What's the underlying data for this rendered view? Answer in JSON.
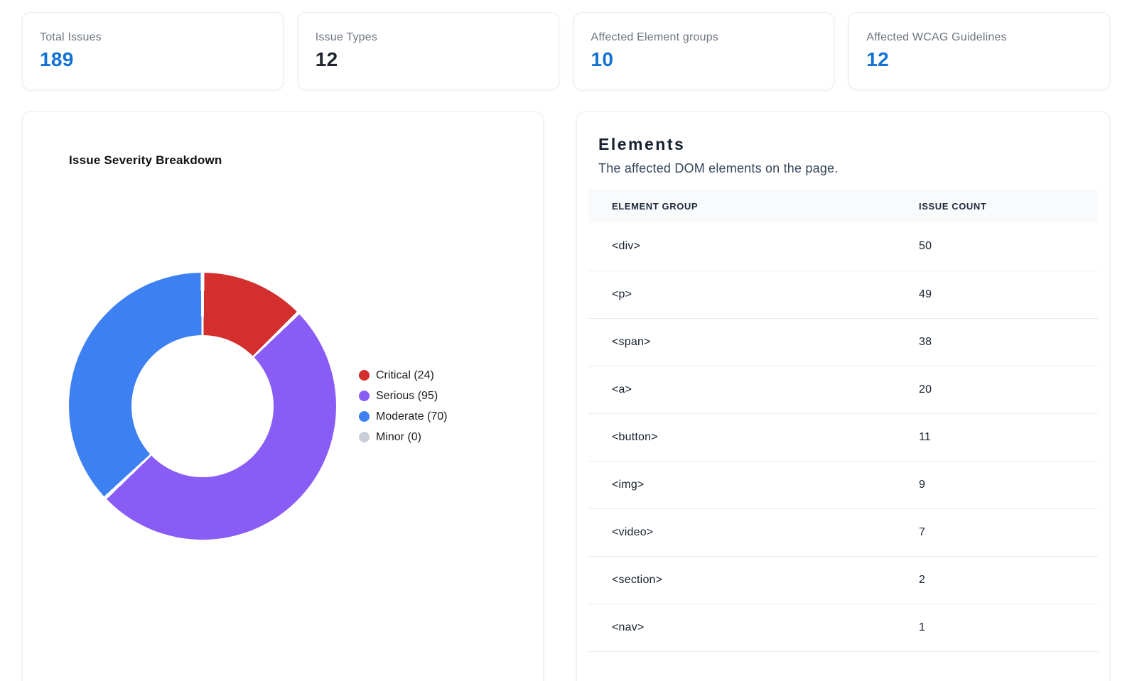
{
  "stats": [
    {
      "label": "Total Issues",
      "value": "189",
      "value_color": "#1272d4"
    },
    {
      "label": "Issue Types",
      "value": "12",
      "value_color": "#1f2430"
    },
    {
      "label": "Affected Element groups",
      "value": "10",
      "value_color": "#1272d4"
    },
    {
      "label": "Affected WCAG Guidelines",
      "value": "12",
      "value_color": "#1272d4"
    }
  ],
  "severity_card": {
    "title": "Issue Severity Breakdown"
  },
  "chart_data": {
    "type": "pie",
    "variant": "donut",
    "title": "Issue Severity Breakdown",
    "labels": [
      "Critical",
      "Serious",
      "Moderate",
      "Minor"
    ],
    "values": [
      24,
      95,
      70,
      0
    ],
    "total": 189,
    "colors": [
      "#d32f2f",
      "#8a5cf6",
      "#3d80f2",
      "#c9ced6"
    ],
    "legend": [
      "Critical (24)",
      "Serious (95)",
      "Moderate (70)",
      "Minor (0)"
    ],
    "legend_position": "right",
    "start_angle_deg": 0,
    "direction": "clockwise"
  },
  "elements_card": {
    "title": "Elements",
    "subtitle": "The affected DOM elements on the page.",
    "table": {
      "columns": [
        "ELEMENT GROUP",
        "ISSUE COUNT"
      ],
      "rows": [
        {
          "group": "<div>",
          "count": "50"
        },
        {
          "group": "<p>",
          "count": "49"
        },
        {
          "group": "<span>",
          "count": "38"
        },
        {
          "group": "<a>",
          "count": "20"
        },
        {
          "group": "<button>",
          "count": "11"
        },
        {
          "group": "<img>",
          "count": "9"
        },
        {
          "group": "<video>",
          "count": "7"
        },
        {
          "group": "<section>",
          "count": "2"
        },
        {
          "group": "<nav>",
          "count": "1"
        }
      ]
    }
  }
}
